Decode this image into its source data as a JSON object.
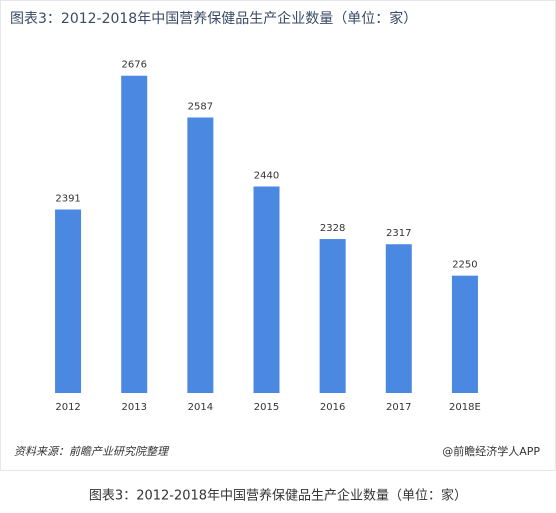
{
  "chart_data": {
    "type": "bar",
    "title": "图表3：2012-2018年中国营养保健品生产企业数量（单位：家）",
    "categories": [
      "2012",
      "2013",
      "2014",
      "2015",
      "2016",
      "2017",
      "2018E"
    ],
    "values": [
      2391,
      2676,
      2587,
      2440,
      2328,
      2317,
      2250
    ],
    "color": "#4a88e2",
    "ylim": [
      2000,
      2750
    ],
    "source": "资料来源：前瞻产业研究院整理",
    "credit": "@前瞻经济学人APP",
    "caption": "图表3：2012-2018年中国营养保健品生产企业数量（单位：家）"
  }
}
